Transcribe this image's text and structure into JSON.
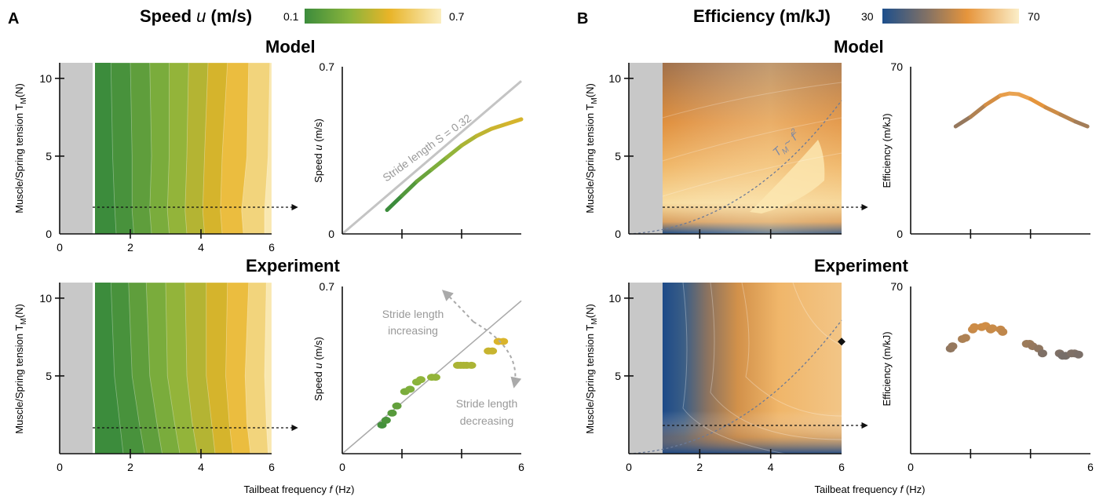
{
  "panel_labels": [
    "A",
    "B"
  ],
  "colorbars": {
    "speed": {
      "title_main": "Speed ",
      "title_sym": "u",
      "title_unit": " (m/s)",
      "min": "0.1",
      "max": "0.7",
      "colors": [
        "#3c8c3c",
        "#8ab43c",
        "#e8b428",
        "#fbeec0"
      ]
    },
    "efficiency": {
      "title": "Efficiency (m/kJ)",
      "min": "30",
      "max": "70",
      "colors": [
        "#1d4f8c",
        "#8a7462",
        "#e6953c",
        "#fbeec8"
      ]
    }
  },
  "row_titles": {
    "model": "Model",
    "experiment": "Experiment"
  },
  "axis_text": {
    "heatmap_ylabel_main": "Muscle/Spring tension T",
    "heatmap_ylabel_sub": "M",
    "heatmap_ylabel_unit": "(N)",
    "xlabel_main": "Tailbeat frequency ",
    "xlabel_sym": "f",
    "xlabel_unit": " (Hz)",
    "speed_ylabel_main": "Speed ",
    "speed_ylabel_sym": "u",
    "speed_ylabel_unit": " (m/s)",
    "eff_ylabel": "Efficiency (m/kJ)"
  },
  "annotations": {
    "stride_length": "Stride length S = 0.32",
    "scaling_main": "T",
    "scaling_sub": "M",
    "scaling_rest": "~ f",
    "scaling_sup": "2",
    "increasing_1": "Stride length",
    "increasing_2": "increasing",
    "decreasing_1": "Stride length",
    "decreasing_2": "decreasing"
  },
  "chart_data": [
    {
      "id": "A-model-heatmap",
      "type": "heatmap",
      "x_range": [
        0,
        6
      ],
      "y_range": [
        0,
        11
      ],
      "x_ticks": [
        "0",
        "2",
        "4",
        "6"
      ],
      "y_ticks": [
        "0",
        "5",
        "10"
      ],
      "colorbar_range": [
        0.1,
        0.7
      ],
      "no_data_region_x": [
        0,
        1
      ],
      "levels": [
        {
          "z": 0.13,
          "boundary": [
            [
              1.6,
              0
            ],
            [
              1.55,
              2
            ],
            [
              1.5,
              5
            ],
            [
              1.45,
              11
            ]
          ]
        },
        {
          "z": 0.19,
          "boundary": [
            [
              2.1,
              0
            ],
            [
              2.05,
              1.5
            ],
            [
              2.05,
              5
            ],
            [
              2.0,
              11
            ]
          ]
        },
        {
          "z": 0.26,
          "boundary": [
            [
              2.6,
              0
            ],
            [
              2.55,
              1.5
            ],
            [
              2.6,
              5
            ],
            [
              2.55,
              11
            ]
          ]
        },
        {
          "z": 0.32,
          "boundary": [
            [
              3.1,
              0
            ],
            [
              3.05,
              1.5
            ],
            [
              3.1,
              5
            ],
            [
              3.1,
              11
            ]
          ]
        },
        {
          "z": 0.39,
          "boundary": [
            [
              3.6,
              0
            ],
            [
              3.55,
              1.5
            ],
            [
              3.6,
              5
            ],
            [
              3.65,
              11
            ]
          ]
        },
        {
          "z": 0.46,
          "boundary": [
            [
              4.1,
              0
            ],
            [
              4.05,
              1.5
            ],
            [
              4.1,
              5
            ],
            [
              4.2,
              11
            ]
          ]
        },
        {
          "z": 0.53,
          "boundary": [
            [
              4.6,
              0
            ],
            [
              4.55,
              1.5
            ],
            [
              4.6,
              5
            ],
            [
              4.75,
              11
            ]
          ]
        },
        {
          "z": 0.61,
          "boundary": [
            [
              5.2,
              0
            ],
            [
              5.15,
              1.5
            ],
            [
              5.3,
              5
            ],
            [
              5.35,
              11
            ]
          ]
        },
        {
          "z": 0.68,
          "boundary": [
            [
              5.8,
              0
            ],
            [
              5.8,
              1.5
            ],
            [
              5.9,
              5
            ],
            [
              5.95,
              11
            ]
          ]
        }
      ]
    },
    {
      "id": "A-model-speed",
      "type": "line",
      "x_range": [
        0,
        6
      ],
      "y_range": [
        0,
        0.7
      ],
      "x_ticks": [],
      "y_ticks": [
        "0",
        "0.7"
      ],
      "series": [
        {
          "style": "grey",
          "x": [
            0,
            6
          ],
          "y": [
            0,
            0.64
          ]
        },
        {
          "style": "colored",
          "x": [
            1.5,
            2.0,
            2.5,
            3.0,
            3.5,
            4.0,
            4.5,
            5.0,
            5.5,
            6.0
          ],
          "y": [
            0.1,
            0.16,
            0.22,
            0.27,
            0.32,
            0.37,
            0.41,
            0.44,
            0.46,
            0.48
          ],
          "z": [
            0.1,
            0.16,
            0.22,
            0.27,
            0.32,
            0.37,
            0.41,
            0.44,
            0.46,
            0.48
          ]
        }
      ]
    },
    {
      "id": "A-exp-heatmap",
      "type": "heatmap",
      "x_range": [
        0,
        6
      ],
      "y_range": [
        0,
        11
      ],
      "x_ticks": [
        "0",
        "2",
        "4",
        "6"
      ],
      "y_ticks": [
        "5",
        "10"
      ],
      "colorbar_range": [
        0.1,
        0.7
      ],
      "no_data_region_x": [
        0,
        1
      ],
      "levels": [
        {
          "z": 0.13,
          "boundary": [
            [
              1.8,
              0
            ],
            [
              1.7,
              2
            ],
            [
              1.55,
              5
            ],
            [
              1.45,
              11
            ]
          ]
        },
        {
          "z": 0.19,
          "boundary": [
            [
              2.4,
              0
            ],
            [
              2.25,
              2
            ],
            [
              2.05,
              5
            ],
            [
              1.95,
              11
            ]
          ]
        },
        {
          "z": 0.26,
          "boundary": [
            [
              2.9,
              0
            ],
            [
              2.75,
              2
            ],
            [
              2.55,
              5
            ],
            [
              2.45,
              11
            ]
          ]
        },
        {
          "z": 0.32,
          "boundary": [
            [
              3.4,
              0
            ],
            [
              3.25,
              2
            ],
            [
              3.05,
              5
            ],
            [
              3.0,
              11
            ]
          ]
        },
        {
          "z": 0.39,
          "boundary": [
            [
              3.9,
              0
            ],
            [
              3.75,
              2
            ],
            [
              3.6,
              5
            ],
            [
              3.55,
              11
            ]
          ]
        },
        {
          "z": 0.46,
          "boundary": [
            [
              4.4,
              0
            ],
            [
              4.3,
              2
            ],
            [
              4.15,
              5
            ],
            [
              4.15,
              11
            ]
          ]
        },
        {
          "z": 0.53,
          "boundary": [
            [
              4.9,
              0
            ],
            [
              4.8,
              2
            ],
            [
              4.7,
              5
            ],
            [
              4.75,
              11
            ]
          ]
        },
        {
          "z": 0.61,
          "boundary": [
            [
              5.4,
              0
            ],
            [
              5.3,
              2
            ],
            [
              5.25,
              5
            ],
            [
              5.35,
              11
            ]
          ]
        },
        {
          "z": 0.68,
          "boundary": [
            [
              5.9,
              0
            ],
            [
              5.85,
              2
            ],
            [
              5.8,
              5
            ],
            [
              5.85,
              11
            ]
          ]
        }
      ]
    },
    {
      "id": "A-exp-speed",
      "type": "scatter",
      "x_range": [
        0,
        6
      ],
      "y_range": [
        0,
        0.7
      ],
      "x_ticks": [
        "0",
        "6"
      ],
      "y_ticks": [
        "0.7"
      ],
      "reference_line": {
        "x": [
          0,
          6
        ],
        "y": [
          0,
          0.64
        ]
      },
      "points": [
        {
          "x": 1.33,
          "y": 0.12
        },
        {
          "x": 1.47,
          "y": 0.14
        },
        {
          "x": 1.67,
          "y": 0.17
        },
        {
          "x": 1.83,
          "y": 0.2
        },
        {
          "x": 2.1,
          "y": 0.26
        },
        {
          "x": 2.27,
          "y": 0.27
        },
        {
          "x": 2.5,
          "y": 0.3
        },
        {
          "x": 2.63,
          "y": 0.31
        },
        {
          "x": 3.0,
          "y": 0.32
        },
        {
          "x": 3.13,
          "y": 0.32
        },
        {
          "x": 3.87,
          "y": 0.37
        },
        {
          "x": 3.97,
          "y": 0.37
        },
        {
          "x": 4.07,
          "y": 0.37
        },
        {
          "x": 4.17,
          "y": 0.37
        },
        {
          "x": 4.33,
          "y": 0.37
        },
        {
          "x": 4.9,
          "y": 0.43
        },
        {
          "x": 5.03,
          "y": 0.43
        },
        {
          "x": 5.23,
          "y": 0.47
        },
        {
          "x": 5.4,
          "y": 0.47
        }
      ]
    },
    {
      "id": "B-model-heatmap",
      "type": "heatmap",
      "x_range": [
        0,
        6
      ],
      "y_range": [
        0,
        11
      ],
      "x_ticks": [],
      "y_ticks": [
        "0",
        "5",
        "10"
      ],
      "colorbar_range": [
        30,
        70
      ],
      "no_data_region_x": [
        0,
        1
      ],
      "scaling_curve": "T_M ~ f^2"
    },
    {
      "id": "B-model-efficiency",
      "type": "line",
      "x_range": [
        0,
        6
      ],
      "y_range": [
        0,
        70
      ],
      "x_ticks": [],
      "y_ticks": [
        "0",
        "70"
      ],
      "series": [
        {
          "x": [
            1.5,
            2.0,
            2.5,
            3.0,
            3.3,
            3.6,
            4.0,
            4.5,
            5.0,
            5.5,
            5.9
          ],
          "y": [
            45,
            49,
            54,
            58,
            58.8,
            58.5,
            56.5,
            53,
            50,
            47,
            45
          ]
        }
      ]
    },
    {
      "id": "B-exp-heatmap",
      "type": "heatmap",
      "x_range": [
        0,
        6
      ],
      "y_range": [
        0,
        11
      ],
      "x_ticks": [
        "0",
        "2",
        "4",
        "6"
      ],
      "y_ticks": [
        "5",
        "10"
      ],
      "colorbar_range": [
        30,
        70
      ],
      "no_data_region_x": [
        0,
        1
      ],
      "marker_point": {
        "x": 6,
        "y": 7.2
      },
      "scaling_curve": "T_M ~ f^2"
    },
    {
      "id": "B-exp-efficiency",
      "type": "scatter",
      "x_range": [
        0,
        6
      ],
      "y_range": [
        0,
        70
      ],
      "x_ticks": [
        "0",
        "6"
      ],
      "y_ticks": [
        "70"
      ],
      "points": [
        {
          "x": 1.33,
          "y": 44
        },
        {
          "x": 1.4,
          "y": 45
        },
        {
          "x": 1.73,
          "y": 48
        },
        {
          "x": 1.83,
          "y": 48.5
        },
        {
          "x": 2.07,
          "y": 52
        },
        {
          "x": 2.13,
          "y": 53
        },
        {
          "x": 2.37,
          "y": 53
        },
        {
          "x": 2.5,
          "y": 53.5
        },
        {
          "x": 2.67,
          "y": 52
        },
        {
          "x": 2.73,
          "y": 52.5
        },
        {
          "x": 3.0,
          "y": 52
        },
        {
          "x": 3.07,
          "y": 51
        },
        {
          "x": 3.87,
          "y": 46
        },
        {
          "x": 3.97,
          "y": 46
        },
        {
          "x": 4.07,
          "y": 45
        },
        {
          "x": 4.27,
          "y": 44
        },
        {
          "x": 4.4,
          "y": 42
        },
        {
          "x": 4.97,
          "y": 42
        },
        {
          "x": 5.07,
          "y": 41
        },
        {
          "x": 5.17,
          "y": 41
        },
        {
          "x": 5.37,
          "y": 42
        },
        {
          "x": 5.47,
          "y": 42
        },
        {
          "x": 5.6,
          "y": 41.5
        }
      ]
    }
  ]
}
